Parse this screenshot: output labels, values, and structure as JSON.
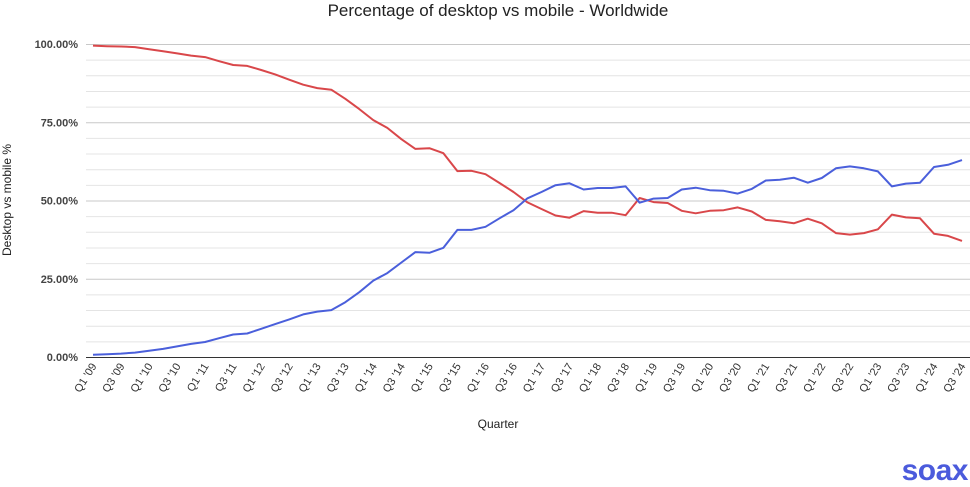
{
  "chart_data": {
    "type": "line",
    "title": "Percentage of desktop vs mobile - Worldwide",
    "xlabel": "Quarter",
    "ylabel": "Desktop vs mobile %",
    "ylim": [
      0,
      100
    ],
    "yticks": [
      "0.00%",
      "25.00%",
      "50.00%",
      "75.00%",
      "100.00%"
    ],
    "grid": true,
    "legend": "none",
    "x": [
      "Q1 '09",
      "Q2 '09",
      "Q3 '09",
      "Q4 '09",
      "Q1 '10",
      "Q2 '10",
      "Q3 '10",
      "Q4 '10",
      "Q1 '11",
      "Q2 '11",
      "Q3 '11",
      "Q4 '11",
      "Q1 '12",
      "Q2 '12",
      "Q3 '12",
      "Q4 '12",
      "Q1 '13",
      "Q2 '13",
      "Q3 '13",
      "Q4 '13",
      "Q1 '14",
      "Q2 '14",
      "Q3 '14",
      "Q4 '14",
      "Q1 '15",
      "Q2 '15",
      "Q3 '15",
      "Q4 '15",
      "Q1 '16",
      "Q2 '16",
      "Q3 '16",
      "Q4 '16",
      "Q1 '17",
      "Q2 '17",
      "Q3 '17",
      "Q4 '17",
      "Q1 '18",
      "Q2 '18",
      "Q3 '18",
      "Q4 '18",
      "Q1 '19",
      "Q2 '19",
      "Q3 '19",
      "Q4 '19",
      "Q1 '20",
      "Q2 '20",
      "Q3 '20",
      "Q4 '20",
      "Q1 '21",
      "Q2 '21",
      "Q3 '21",
      "Q4 '21",
      "Q1 '22",
      "Q2 '22",
      "Q3 '22",
      "Q4 '22",
      "Q1 '23",
      "Q2 '23",
      "Q3 '23",
      "Q4 '23",
      "Q1 '24",
      "Q2 '24",
      "Q3 '24"
    ],
    "xtick_labels": [
      "Q1 '09",
      "Q3 '09",
      "Q1 '10",
      "Q3 '10",
      "Q1 '11",
      "Q3 '11",
      "Q1 '12",
      "Q3 '12",
      "Q1 '13",
      "Q3 '13",
      "Q1 '14",
      "Q3 '14",
      "Q1 '15",
      "Q3 '15",
      "Q1 '16",
      "Q3 '16",
      "Q1 '17",
      "Q3 '17",
      "Q1 '18",
      "Q3 '18",
      "Q1 '19",
      "Q3 '19",
      "Q1 '20",
      "Q3 '20",
      "Q1 '21",
      "Q3 '21",
      "Q1 '22",
      "Q3 '22",
      "Q1 '23",
      "Q3 '23",
      "Q1 '24",
      "Q3 '24"
    ],
    "series": [
      {
        "color": "#d9474a",
        "values": [
          99.5,
          99.3,
          99.2,
          99.0,
          98.3,
          97.7,
          97.0,
          96.3,
          95.8,
          94.5,
          93.3,
          93.0,
          91.7,
          90.3,
          88.6,
          87.0,
          85.9,
          85.4,
          82.5,
          79.2,
          75.7,
          73.2,
          69.6,
          66.5,
          66.7,
          65.1,
          59.4,
          59.5,
          58.4,
          55.6,
          52.7,
          49.4,
          47.3,
          45.2,
          44.5,
          46.6,
          46.1,
          46.1,
          45.3,
          50.8,
          49.5,
          49.2,
          46.7,
          45.9,
          46.7,
          46.9,
          47.8,
          46.5,
          43.8,
          43.4,
          42.7,
          44.2,
          42.7,
          39.6,
          39.1,
          39.6,
          40.8,
          45.5,
          44.6,
          44.3,
          39.4,
          38.7,
          37.1
        ]
      },
      {
        "color": "#4a5fdb",
        "values": [
          0.7,
          0.9,
          1.1,
          1.4,
          2.0,
          2.6,
          3.4,
          4.2,
          4.8,
          6.0,
          7.2,
          7.5,
          9.0,
          10.5,
          12.0,
          13.6,
          14.5,
          15.0,
          17.5,
          20.7,
          24.4,
          26.8,
          30.2,
          33.5,
          33.3,
          34.9,
          40.6,
          40.6,
          41.6,
          44.3,
          46.9,
          50.7,
          52.7,
          54.9,
          55.5,
          53.5,
          54.0,
          54.0,
          54.5,
          49.3,
          50.6,
          50.8,
          53.5,
          54.1,
          53.3,
          53.1,
          52.2,
          53.7,
          56.4,
          56.6,
          57.3,
          55.7,
          57.2,
          60.3,
          60.9,
          60.3,
          59.3,
          54.5,
          55.4,
          55.7,
          60.7,
          61.4,
          62.9
        ]
      }
    ]
  },
  "logo": {
    "text": "soax"
  }
}
